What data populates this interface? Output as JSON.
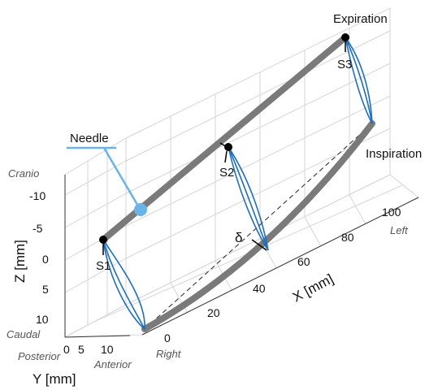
{
  "figure": {
    "labels": {
      "expiration": "Expiration",
      "inspiration": "Inspiration",
      "needle": "Needle",
      "delta": "δ",
      "s1": "S1",
      "s2": "S2",
      "s3": "S3"
    },
    "axes": {
      "x": {
        "label": "X [mm]",
        "ticks": [
          "0",
          "20",
          "40",
          "60",
          "80",
          "100"
        ],
        "dir_low": "Right",
        "dir_high": "Left"
      },
      "y": {
        "label": "Y [mm]",
        "ticks": [
          "0",
          "5",
          "10"
        ],
        "dir_low": "Posterior",
        "dir_high": "Anterior"
      },
      "z": {
        "label": "Z [mm]",
        "ticks": [
          "-10",
          "-5",
          "0",
          "5",
          "10"
        ],
        "dir_low": "Caudal",
        "dir_high": "Cranio"
      }
    },
    "colors": {
      "trajectory": "#7a7a7a",
      "breathing_loop": "#1f6fb8",
      "needle": "#69b4e6",
      "grid": "#d6d6d6"
    }
  }
}
